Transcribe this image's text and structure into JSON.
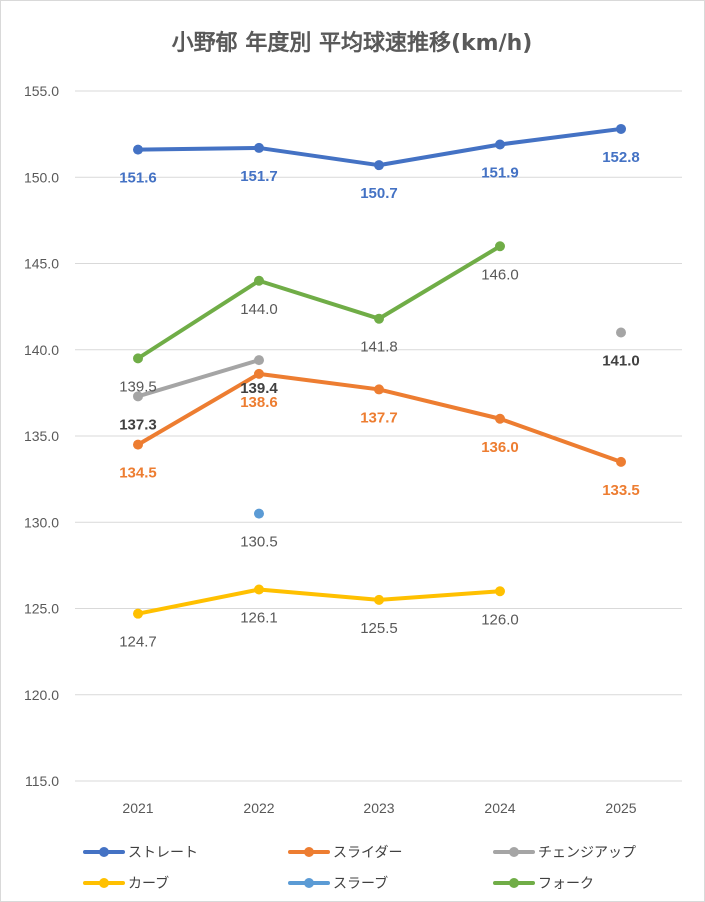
{
  "chart_data": {
    "type": "line",
    "title": "小野郁 年度別 平均球速推移(km/h)",
    "xlabel": "",
    "ylabel": "",
    "categories": [
      "2021",
      "2022",
      "2023",
      "2024",
      "2025"
    ],
    "ylim": [
      115,
      155
    ],
    "yticks": [
      "115.0",
      "120.0",
      "125.0",
      "130.0",
      "135.0",
      "140.0",
      "145.0",
      "150.0",
      "155.0"
    ],
    "grid": true,
    "legend_position": "bottom",
    "series": [
      {
        "name": "ストレート",
        "color": "#4472C4",
        "values": [
          151.6,
          151.7,
          150.7,
          151.9,
          152.8
        ],
        "labels": [
          "151.6",
          "151.7",
          "150.7",
          "151.9",
          "152.8"
        ]
      },
      {
        "name": "スライダー",
        "color": "#ED7D31",
        "values": [
          134.5,
          138.6,
          137.7,
          136.0,
          133.5
        ],
        "labels": [
          "134.5",
          "138.6",
          "137.7",
          "136.0",
          "133.5"
        ]
      },
      {
        "name": "チェンジアップ",
        "color": "#A5A5A5",
        "values": [
          137.3,
          139.4,
          null,
          null,
          141.0
        ],
        "labels": [
          "137.3",
          "139.4",
          null,
          null,
          "141.0"
        ]
      },
      {
        "name": "カーブ",
        "color": "#FFC000",
        "values": [
          124.7,
          126.1,
          125.5,
          126.0,
          null
        ],
        "labels": [
          "124.7",
          "126.1",
          "125.5",
          "126.0",
          null
        ]
      },
      {
        "name": "スラーブ",
        "color": "#5B9BD5",
        "values": [
          null,
          130.5,
          null,
          null,
          null
        ],
        "labels": [
          null,
          "130.5",
          null,
          null,
          null
        ]
      },
      {
        "name": "フォーク",
        "color": "#70AD47",
        "values": [
          139.5,
          144.0,
          141.8,
          146.0,
          null
        ],
        "labels": [
          "139.5",
          "144.0",
          "141.8",
          "146.0",
          null
        ]
      }
    ]
  }
}
